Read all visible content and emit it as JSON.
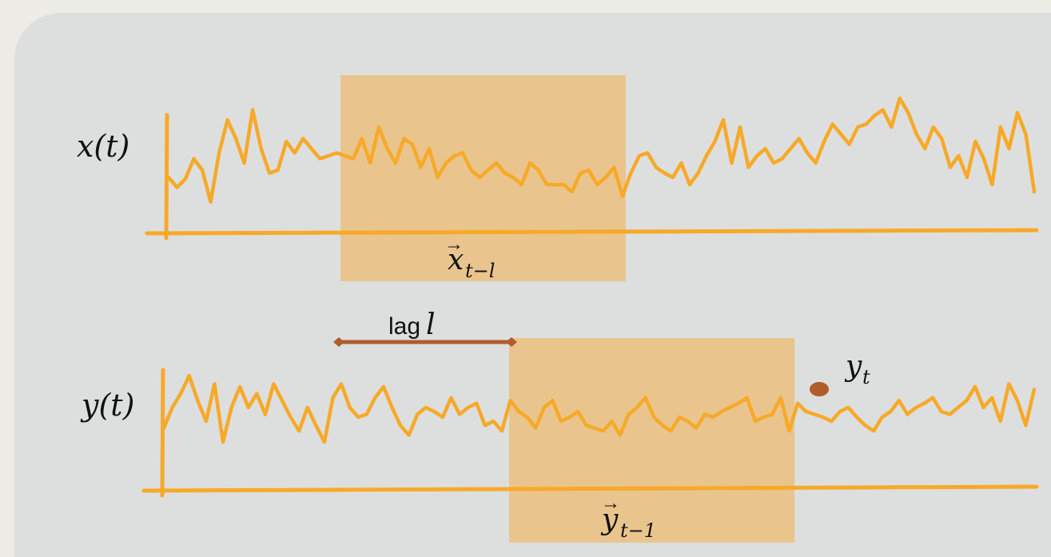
{
  "colors": {
    "signal": "#f7a928",
    "window_fill": "#e9c58d",
    "lag_marker": "#b05d2a",
    "panel_bg": "#dddfdf",
    "outer_bg": "#edece6"
  },
  "series": {
    "x": {
      "label": "x(t)",
      "window_label_base": "x",
      "window_label_subscript": "t−l",
      "values": [
        0.35,
        0.28,
        0.34,
        0.48,
        0.4,
        0.18,
        0.52,
        0.75,
        0.62,
        0.45,
        0.82,
        0.55,
        0.38,
        0.4,
        0.6,
        0.52,
        0.62,
        0.55,
        0.48,
        0.5,
        0.52,
        0.5,
        0.48,
        0.62,
        0.45,
        0.7,
        0.55,
        0.45,
        0.62,
        0.58,
        0.42,
        0.55,
        0.35,
        0.45,
        0.5,
        0.52,
        0.4,
        0.35,
        0.4,
        0.45,
        0.38,
        0.35,
        0.3,
        0.45,
        0.4,
        0.3,
        0.3,
        0.3,
        0.25,
        0.38,
        0.4,
        0.3,
        0.35,
        0.42,
        0.22,
        0.38,
        0.5,
        0.52,
        0.42,
        0.38,
        0.35,
        0.45,
        0.3,
        0.38,
        0.5,
        0.6,
        0.75,
        0.45,
        0.7,
        0.42,
        0.5,
        0.55,
        0.45,
        0.48,
        0.55,
        0.62,
        0.52,
        0.45,
        0.6,
        0.72,
        0.65,
        0.58,
        0.7,
        0.72,
        0.78,
        0.82,
        0.7,
        0.9,
        0.8,
        0.65,
        0.55,
        0.7,
        0.62,
        0.42,
        0.5,
        0.35,
        0.6,
        0.48,
        0.3,
        0.7,
        0.55,
        0.8,
        0.65,
        0.25
      ]
    },
    "y": {
      "label": "y(t)",
      "window_label_base": "y",
      "window_label_subscript": "t−1",
      "values": [
        0.4,
        0.55,
        0.65,
        0.78,
        0.6,
        0.45,
        0.72,
        0.3,
        0.55,
        0.7,
        0.55,
        0.65,
        0.5,
        0.72,
        0.6,
        0.48,
        0.38,
        0.55,
        0.42,
        0.3,
        0.62,
        0.72,
        0.55,
        0.48,
        0.5,
        0.62,
        0.7,
        0.55,
        0.42,
        0.35,
        0.5,
        0.55,
        0.52,
        0.48,
        0.62,
        0.5,
        0.55,
        0.58,
        0.42,
        0.45,
        0.38,
        0.6,
        0.52,
        0.48,
        0.4,
        0.55,
        0.6,
        0.45,
        0.48,
        0.52,
        0.42,
        0.4,
        0.38,
        0.45,
        0.35,
        0.5,
        0.55,
        0.62,
        0.48,
        0.42,
        0.38,
        0.48,
        0.45,
        0.4,
        0.5,
        0.48,
        0.52,
        0.55,
        0.58,
        0.62,
        0.45,
        0.48,
        0.5,
        0.62,
        0.38,
        0.58,
        0.52,
        0.5,
        0.48,
        0.45,
        0.52,
        0.55,
        0.48,
        0.42,
        0.38,
        0.48,
        0.52,
        0.6,
        0.5,
        0.55,
        0.58,
        0.62,
        0.52,
        0.5,
        0.55,
        0.6,
        0.7,
        0.55,
        0.62,
        0.45,
        0.72,
        0.6,
        0.42,
        0.68
      ]
    }
  },
  "lag": {
    "text": "lag",
    "symbol": "l"
  },
  "target_point": {
    "base": "y",
    "subscript": "t"
  }
}
